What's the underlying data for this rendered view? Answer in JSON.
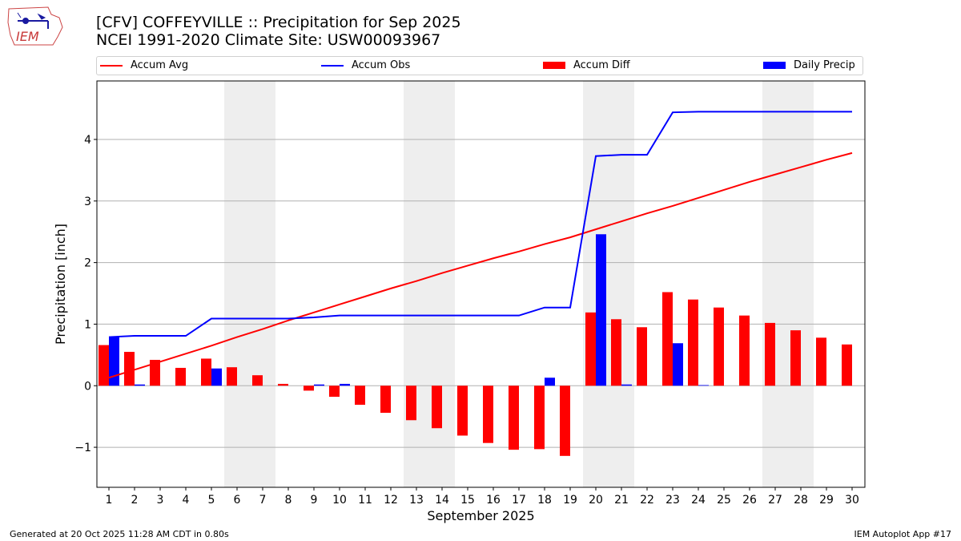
{
  "title": {
    "line1": "[CFV] COFFEYVILLE :: Precipitation for Sep 2025",
    "line2": "NCEI 1991-2020 Climate Site: USW00093967"
  },
  "logo": {
    "text": "IEM"
  },
  "footer": {
    "left": "Generated at 20 Oct 2025 11:28 AM CDT in 0.80s",
    "right": "IEM Autoplot App #17"
  },
  "colors": {
    "avg": "#ff0000",
    "obs": "#0000ff",
    "diff": "#ff0000",
    "daily": "#0000ff",
    "weekend": "#eeeeee"
  },
  "chart_data": {
    "type": "bar",
    "xlabel": "September 2025",
    "ylabel": "Precipitation [inch]",
    "ylim": [
      -1.65,
      4.95
    ],
    "yticks": [
      -1,
      0,
      1,
      2,
      3,
      4
    ],
    "ytick_labels": [
      "−1",
      "0",
      "1",
      "2",
      "3",
      "4"
    ],
    "grid": "horizontal",
    "legend_position": "top",
    "categories": [
      "1",
      "2",
      "3",
      "4",
      "5",
      "6",
      "7",
      "8",
      "9",
      "10",
      "11",
      "12",
      "13",
      "14",
      "15",
      "16",
      "17",
      "18",
      "19",
      "20",
      "21",
      "22",
      "23",
      "24",
      "25",
      "26",
      "27",
      "28",
      "29",
      "30"
    ],
    "weekend_days": [
      [
        6,
        7
      ],
      [
        13,
        14
      ],
      [
        20,
        21
      ],
      [
        27,
        28
      ]
    ],
    "legend": [
      "Accum Avg",
      "Accum Obs",
      "Accum Diff",
      "Daily Precip"
    ],
    "series": [
      {
        "name": "Accum Avg",
        "kind": "line",
        "values": [
          0.13,
          0.26,
          0.39,
          0.52,
          0.65,
          0.79,
          0.92,
          1.06,
          1.19,
          1.32,
          1.45,
          1.58,
          1.7,
          1.83,
          1.95,
          2.07,
          2.18,
          2.3,
          2.41,
          2.54,
          2.67,
          2.8,
          2.92,
          3.05,
          3.18,
          3.31,
          3.43,
          3.55,
          3.67,
          3.78
        ]
      },
      {
        "name": "Accum Obs",
        "kind": "line",
        "values": [
          0.79,
          0.81,
          0.81,
          0.81,
          1.09,
          1.09,
          1.09,
          1.09,
          1.11,
          1.14,
          1.14,
          1.14,
          1.14,
          1.14,
          1.14,
          1.14,
          1.14,
          1.27,
          1.27,
          3.73,
          3.75,
          3.75,
          4.44,
          4.45,
          4.45,
          4.45,
          4.45,
          4.45,
          4.45,
          4.45
        ]
      },
      {
        "name": "Accum Diff",
        "kind": "bar",
        "values": [
          0.66,
          0.55,
          0.42,
          0.29,
          0.44,
          0.3,
          0.17,
          0.03,
          -0.08,
          -0.18,
          -0.31,
          -0.44,
          -0.56,
          -0.69,
          -0.81,
          -0.93,
          -1.04,
          -1.03,
          -1.14,
          1.19,
          1.08,
          0.95,
          1.52,
          1.4,
          1.27,
          1.14,
          1.02,
          0.9,
          0.78,
          0.67
        ]
      },
      {
        "name": "Daily Precip",
        "kind": "bar",
        "values": [
          0.79,
          0.02,
          0,
          0,
          0.28,
          0,
          0,
          0,
          0.02,
          0.03,
          0,
          0,
          0,
          0,
          0,
          0,
          0,
          0.13,
          0,
          2.46,
          0.02,
          0,
          0.69,
          0.01,
          0,
          0,
          0,
          0,
          0,
          0
        ]
      }
    ]
  }
}
